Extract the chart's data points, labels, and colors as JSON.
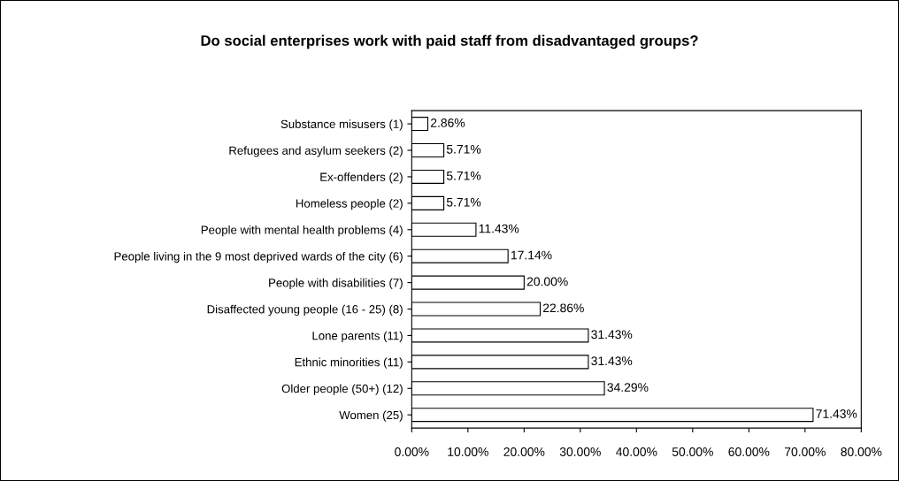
{
  "chart_data": {
    "type": "bar",
    "orientation": "horizontal",
    "title": "Do social enterprises work with paid staff from disadvantaged groups?",
    "categories": [
      "Substance misusers (1)",
      "Refugees and asylum seekers (2)",
      "Ex-offenders (2)",
      "Homeless people (2)",
      "People with mental health problems (4)",
      "People living in the 9 most deprived wards of the city (6)",
      "People with disabilities (7)",
      "Disaffected young people (16 - 25) (8)",
      "Lone parents (11)",
      "Ethnic minorities (11)",
      "Older people (50+) (12)",
      "Women (25)"
    ],
    "values": [
      2.86,
      5.71,
      5.71,
      5.71,
      11.43,
      17.14,
      20.0,
      22.86,
      31.43,
      31.43,
      34.29,
      71.43
    ],
    "value_labels": [
      "2.86%",
      "5.71%",
      "5.71%",
      "5.71%",
      "11.43%",
      "17.14%",
      "20.00%",
      "22.86%",
      "31.43%",
      "31.43%",
      "34.29%",
      "71.43%"
    ],
    "color": "#ffffff",
    "xlim": [
      0,
      80
    ],
    "xticks": [
      {
        "value": 0,
        "label": "0.00%"
      },
      {
        "value": 10,
        "label": "10.00%"
      },
      {
        "value": 20,
        "label": "20.00%"
      },
      {
        "value": 30,
        "label": "30.00%"
      },
      {
        "value": 40,
        "label": "40.00%"
      },
      {
        "value": 50,
        "label": "50.00%"
      },
      {
        "value": 60,
        "label": "60.00%"
      },
      {
        "value": 70,
        "label": "70.00%"
      },
      {
        "value": 80,
        "label": "80.00%"
      }
    ],
    "grid": false
  }
}
